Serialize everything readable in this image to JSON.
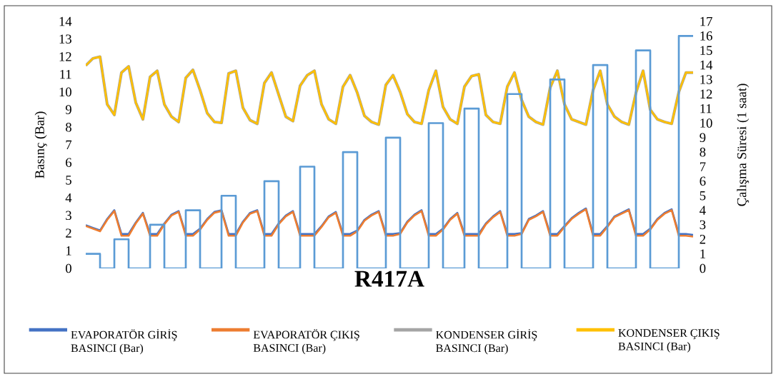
{
  "chart_data": {
    "type": "line",
    "title": "R417A",
    "ylabel": "Basınç (Bar)",
    "y2label": "Çalışma Süresi (1 saat)",
    "marker": "none",
    "legend": "bottom",
    "tick_labels": "y",
    "categories": [
      null,
      null,
      null,
      null,
      null,
      null,
      null,
      null,
      null,
      null,
      null,
      null,
      null,
      null,
      null,
      null,
      null,
      null,
      null,
      null,
      null,
      null,
      null,
      null,
      null,
      null,
      null,
      null,
      null,
      null,
      null,
      null,
      null,
      null,
      null,
      null,
      null,
      null,
      null,
      null,
      null,
      null,
      null,
      null,
      null,
      null,
      null,
      null,
      null,
      null,
      null,
      null,
      null,
      null,
      null,
      null,
      null,
      null,
      null,
      null,
      null,
      null,
      null,
      null,
      null,
      null,
      null,
      null,
      null,
      null,
      null,
      null,
      null,
      null,
      null,
      null,
      null,
      null,
      null,
      null,
      null,
      null,
      null,
      null,
      null,
      null
    ],
    "series": [
      {
        "name": "EVAPORATÖR GİRİŞ BASINCI (Bar)",
        "color": "#4472c4",
        "values": [
          2.45,
          2.3,
          2.15,
          2.8,
          3.3,
          1.95,
          1.95,
          2.6,
          3.15,
          1.95,
          1.95,
          2.55,
          3.05,
          3.25,
          1.95,
          1.95,
          2.25,
          2.8,
          3.2,
          3.3,
          1.95,
          1.95,
          2.65,
          3.15,
          3.3,
          1.95,
          1.95,
          2.55,
          3.0,
          3.25,
          1.95,
          1.95,
          1.95,
          2.4,
          2.95,
          3.2,
          1.95,
          1.95,
          2.15,
          2.75,
          3.05,
          3.25,
          1.95,
          1.95,
          2.0,
          2.65,
          3.05,
          3.3,
          1.95,
          1.95,
          2.25,
          2.8,
          3.15,
          1.95,
          1.95,
          1.95,
          2.55,
          2.95,
          3.25,
          1.95,
          1.95,
          2.0,
          2.8,
          3.0,
          3.25,
          1.95,
          1.95,
          2.4,
          2.85,
          3.15,
          3.4,
          1.95,
          1.95,
          2.4,
          2.95,
          3.15,
          3.35,
          1.95,
          1.95,
          2.25,
          2.8,
          3.15,
          3.35,
          1.95,
          1.95,
          1.9
        ]
      },
      {
        "name": "EVAPORATÖR ÇIKIŞ BASINCI (Bar)",
        "color": "#ed7d31",
        "values": [
          2.4,
          2.25,
          2.1,
          2.75,
          3.25,
          1.85,
          1.85,
          2.55,
          3.1,
          1.85,
          1.85,
          2.5,
          3.0,
          3.2,
          1.85,
          1.85,
          2.2,
          2.75,
          3.15,
          3.25,
          1.85,
          1.85,
          2.6,
          3.1,
          3.25,
          1.85,
          1.85,
          2.5,
          2.95,
          3.2,
          1.85,
          1.85,
          1.85,
          2.35,
          2.9,
          3.15,
          1.85,
          1.85,
          2.1,
          2.7,
          3.0,
          3.2,
          1.85,
          1.85,
          1.95,
          2.6,
          3.0,
          3.25,
          1.85,
          1.85,
          2.2,
          2.75,
          3.1,
          1.85,
          1.85,
          1.85,
          2.5,
          2.9,
          3.2,
          1.85,
          1.85,
          1.95,
          2.75,
          2.95,
          3.2,
          1.85,
          1.85,
          2.35,
          2.8,
          3.1,
          3.35,
          1.85,
          1.85,
          2.35,
          2.9,
          3.1,
          3.3,
          1.85,
          1.85,
          2.2,
          2.75,
          3.1,
          3.3,
          1.85,
          1.85,
          1.8
        ]
      },
      {
        "name": "KONDENSER GİRİŞ BASINCI (Bar)",
        "color": "#a5a5a5",
        "values": [
          11.5,
          11.9,
          12.0,
          9.3,
          8.7,
          11.1,
          11.45,
          9.4,
          8.45,
          10.85,
          11.2,
          9.3,
          8.6,
          8.3,
          10.8,
          11.25,
          10.1,
          8.8,
          8.3,
          8.25,
          11.05,
          11.2,
          9.1,
          8.4,
          8.2,
          10.5,
          11.1,
          9.85,
          8.6,
          8.35,
          10.35,
          10.95,
          11.2,
          9.3,
          8.45,
          8.2,
          10.3,
          10.95,
          9.95,
          8.65,
          8.3,
          8.15,
          10.4,
          10.95,
          10.0,
          8.75,
          8.3,
          8.2,
          10.1,
          11.2,
          9.15,
          8.45,
          8.2,
          10.3,
          10.9,
          11.0,
          8.7,
          8.3,
          8.2,
          10.3,
          11.1,
          9.55,
          8.6,
          8.3,
          8.15,
          10.25,
          11.2,
          9.3,
          8.45,
          8.3,
          8.15,
          10.1,
          11.2,
          9.3,
          8.6,
          8.3,
          8.15,
          9.95,
          11.2,
          9.0,
          8.45,
          8.3,
          8.2,
          10.0,
          11.1,
          11.1
        ]
      },
      {
        "name": "KONDENSER ÇIKIŞ BASINCI (Bar)",
        "color": "#ffc000",
        "values": [
          11.5,
          11.9,
          12.0,
          9.3,
          8.7,
          11.1,
          11.45,
          9.4,
          8.45,
          10.85,
          11.2,
          9.3,
          8.6,
          8.3,
          10.8,
          11.25,
          10.1,
          8.8,
          8.3,
          8.25,
          11.05,
          11.2,
          9.1,
          8.4,
          8.2,
          10.5,
          11.1,
          9.85,
          8.6,
          8.35,
          10.35,
          10.95,
          11.2,
          9.3,
          8.45,
          8.2,
          10.3,
          10.95,
          9.95,
          8.65,
          8.3,
          8.15,
          10.4,
          10.95,
          10.0,
          8.75,
          8.3,
          8.2,
          10.1,
          11.2,
          9.15,
          8.45,
          8.2,
          10.3,
          10.9,
          11.0,
          8.7,
          8.3,
          8.2,
          10.3,
          11.1,
          9.55,
          8.6,
          8.3,
          8.15,
          10.25,
          11.2,
          9.3,
          8.45,
          8.3,
          8.15,
          10.1,
          11.2,
          9.3,
          8.6,
          8.3,
          8.15,
          9.95,
          11.2,
          9.0,
          8.45,
          8.3,
          8.2,
          10.0,
          11.1,
          11.1
        ]
      },
      {
        "type": "step",
        "axis": "y2",
        "color": "#5b9bd5",
        "values": [
          1,
          1,
          0,
          0,
          2,
          2,
          0,
          0,
          0,
          3,
          3,
          0,
          0,
          0,
          4,
          4,
          0,
          0,
          0,
          5,
          5,
          0,
          0,
          0,
          0,
          6,
          6,
          0,
          0,
          0,
          7,
          7,
          0,
          0,
          0,
          0,
          8,
          8,
          0,
          0,
          0,
          0,
          9,
          9,
          0,
          0,
          0,
          0,
          10,
          10,
          0,
          0,
          0,
          11,
          11,
          0,
          0,
          0,
          0,
          12,
          12,
          0,
          0,
          0,
          0,
          13,
          13,
          0,
          0,
          0,
          0,
          14,
          14,
          0,
          0,
          0,
          0,
          15,
          15,
          0,
          0,
          0,
          0,
          16,
          16,
          16
        ]
      }
    ],
    "ylim": [
      0,
      14
    ],
    "yticks": [
      0,
      1,
      2,
      3,
      4,
      5,
      6,
      7,
      8,
      9,
      10,
      11,
      12,
      13,
      14
    ],
    "y2lim": [
      0,
      17
    ],
    "y2ticks": [
      0,
      1,
      2,
      3,
      4,
      5,
      6,
      7,
      8,
      9,
      10,
      11,
      12,
      13,
      14,
      15,
      16,
      17
    ]
  }
}
